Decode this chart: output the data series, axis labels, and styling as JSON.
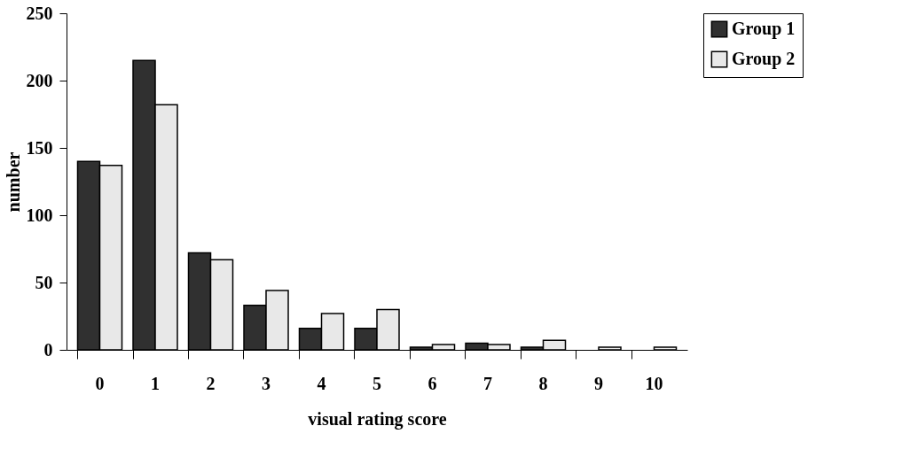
{
  "chart_data": {
    "type": "bar",
    "xlabel": "visual rating score",
    "ylabel": "number",
    "categories": [
      "0",
      "1",
      "2",
      "3",
      "4",
      "5",
      "6",
      "7",
      "8",
      "9",
      "10"
    ],
    "series": [
      {
        "name": "Group 1",
        "color": "#303030",
        "values": [
          140,
          215,
          72,
          33,
          16,
          16,
          2,
          5,
          2,
          null,
          null
        ]
      },
      {
        "name": "Group 2",
        "color": "#e8e8e8",
        "values": [
          137,
          182,
          67,
          44,
          27,
          30,
          4,
          4,
          7,
          2,
          2
        ]
      }
    ],
    "ylim": [
      0,
      250
    ],
    "yticks": [
      0,
      50,
      100,
      150,
      200,
      250
    ],
    "grid": false,
    "legend": "right"
  }
}
